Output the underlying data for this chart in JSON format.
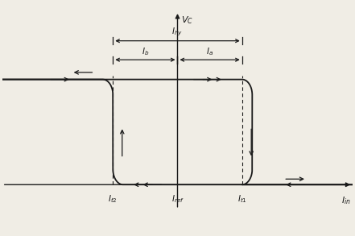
{
  "bg_color": "#f0ede5",
  "line_color": "#1a1a1a",
  "It2": -1.4,
  "Iref": 0.0,
  "It1": 1.4,
  "Vc_high": 1.5,
  "Vc_low": 0.0,
  "xlim": [
    -3.8,
    3.8
  ],
  "ylim": [
    -0.7,
    2.6
  ],
  "x_axis_y": 0.0,
  "y_axis_x": 0.0,
  "r_corner": 0.22
}
